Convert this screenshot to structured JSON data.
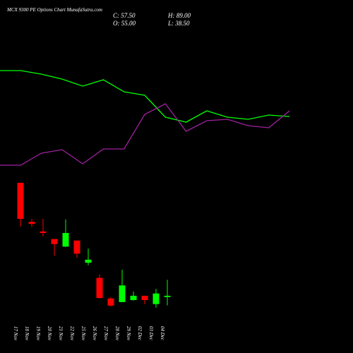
{
  "chart_data": [
    {
      "type": "line",
      "x": [
        0,
        1,
        2,
        3,
        4,
        5,
        6,
        7,
        8,
        9,
        10,
        11,
        12,
        13,
        14
      ],
      "xlim": [
        0,
        14
      ],
      "ylim": [
        0,
        250
      ],
      "series": [
        {
          "color": "#00ff00",
          "values": [
            150,
            150,
            145,
            138,
            128,
            137,
            120,
            115,
            84,
            77,
            93,
            84,
            81,
            87,
            85
          ]
        },
        {
          "color": "#a020a0",
          "values": [
            16,
            16,
            33,
            38,
            18,
            39,
            39,
            88,
            103,
            64,
            79,
            81,
            72,
            69,
            93
          ]
        }
      ]
    },
    {
      "type": "candlestick",
      "title": "MCX 9300 PE Options Chart MunafaSutra.com",
      "info": [
        "C: 57.50",
        "H: 89.00",
        "O: 55.00",
        "L: 38.50"
      ],
      "categories": [
        "17 Nov",
        "18 Nov",
        "19 Nov",
        "20 Nov",
        "21 Nov",
        "22 Nov",
        "25 Nov",
        "26 Nov",
        "27 Nov",
        "28 Nov",
        "29 Nov",
        "02 Dec",
        "03 Dec",
        "04 Dec"
      ],
      "open": [
        281.5,
        204,
        185,
        170,
        155,
        167,
        123,
        93,
        52,
        45,
        49,
        57.5,
        41,
        55
      ],
      "high": [
        281.5,
        210,
        210,
        170,
        209,
        167,
        151,
        100,
        55,
        109,
        66,
        57.5,
        71,
        89
      ],
      "low": [
        195,
        194,
        175,
        137,
        154,
        133,
        118,
        52,
        36,
        45,
        48,
        41,
        34,
        38.5
      ],
      "close": [
        210,
        200,
        182,
        160,
        182,
        141,
        129,
        53,
        38,
        78,
        57.5,
        49,
        62,
        57.5
      ],
      "ylim": [
        0,
        300
      ],
      "up_color": "#00ff00",
      "down_color": "#ff0000"
    }
  ]
}
